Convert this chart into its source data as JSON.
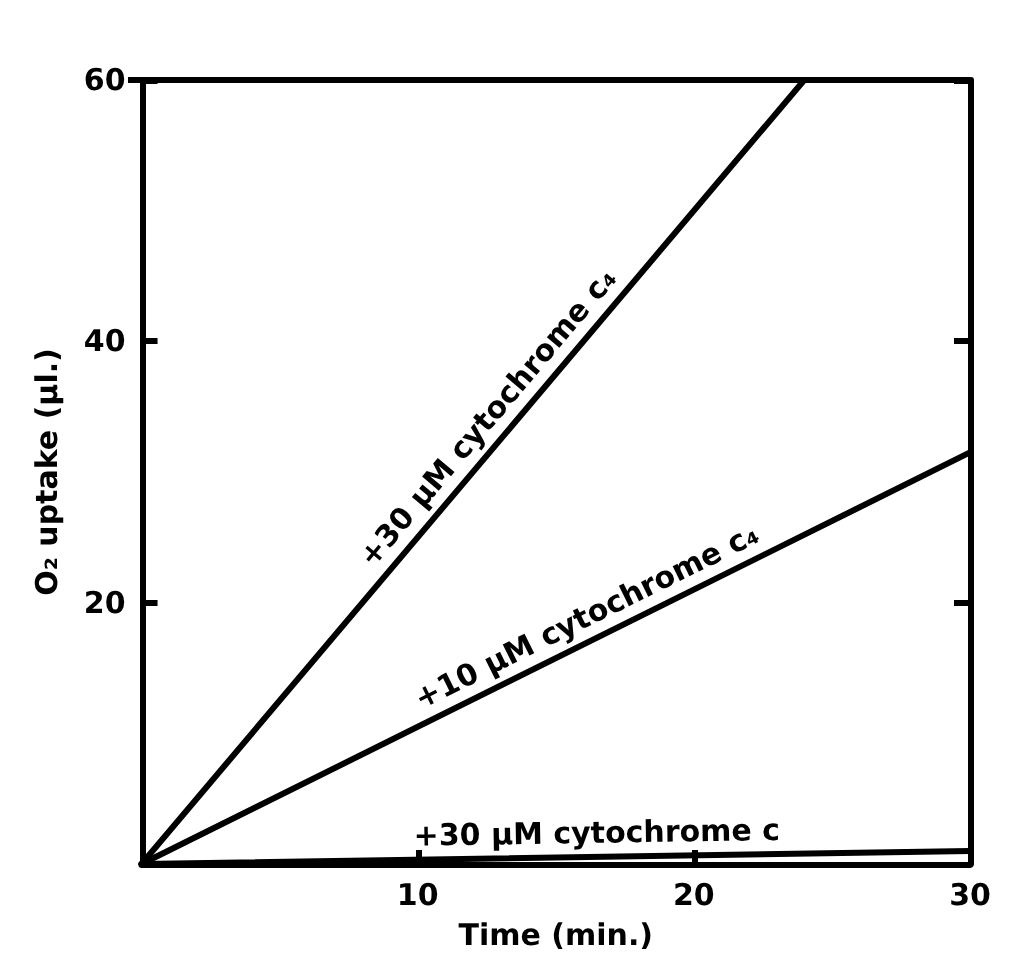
{
  "chart_data": {
    "type": "line",
    "xlabel": "Time (min.)",
    "ylabel": "O₂ uptake (µl.)",
    "xlim": [
      0,
      30
    ],
    "ylim": [
      0,
      60
    ],
    "xticks": [
      10,
      20,
      30
    ],
    "yticks": [
      20,
      40,
      60
    ],
    "grid": false,
    "legend": false,
    "marker": "none",
    "line_style": "solid",
    "series": [
      {
        "name": "+30 µM cytochrome c₄",
        "color": "#000000",
        "x": [
          0,
          24
        ],
        "values": [
          0,
          60
        ]
      },
      {
        "name": "+10 µM cytochrome c₄",
        "color": "#000000",
        "x": [
          0,
          30
        ],
        "values": [
          0,
          31.5
        ]
      },
      {
        "name": "+30 µM cytochrome c",
        "color": "#000000",
        "x": [
          0,
          30
        ],
        "values": [
          0,
          1
        ]
      }
    ]
  }
}
